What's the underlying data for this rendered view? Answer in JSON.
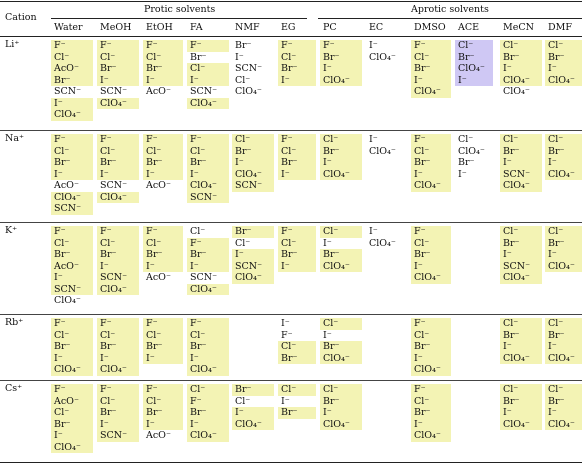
{
  "header": {
    "cation": "Cation",
    "protic": "Protic solvents",
    "aprotic": "Aprotic solvents",
    "solvents": [
      "Water",
      "MeOH",
      "EtOH",
      "FA",
      "NMF",
      "EG",
      "PC",
      "EC",
      "DMSO",
      "ACE",
      "MeCN",
      "DMF"
    ]
  },
  "colors": {
    "highlight": "#f3f3b4",
    "purple": "#cfc8f4"
  },
  "rows": [
    {
      "cation": "Li⁺",
      "cells": [
        [
          [
            "F⁻",
            1
          ],
          [
            "Cl⁻",
            1
          ],
          [
            "AcO⁻",
            1
          ],
          [
            "Br⁻",
            1
          ],
          [
            "SCN⁻",
            0
          ],
          [
            "I⁻",
            1
          ],
          [
            "ClO₄⁻",
            1
          ]
        ],
        [
          [
            "F⁻",
            1
          ],
          [
            "Cl⁻",
            1
          ],
          [
            "Br⁻",
            1
          ],
          [
            "I⁻",
            1
          ],
          [
            "SCN⁻",
            0
          ],
          [
            "ClO₄⁻",
            1
          ]
        ],
        [
          [
            "F⁻",
            1
          ],
          [
            "Cl⁻",
            1
          ],
          [
            "Br⁻",
            1
          ],
          [
            "I⁻",
            1
          ],
          [
            "AcO⁻",
            0
          ]
        ],
        [
          [
            "F⁻",
            1
          ],
          [
            "Br⁻",
            0
          ],
          [
            "Cl⁻",
            1
          ],
          [
            "I⁻",
            1
          ],
          [
            "SCN⁻",
            0
          ],
          [
            "ClO₄⁻",
            1
          ]
        ],
        [
          [
            "Br⁻",
            0
          ],
          [
            "I⁻",
            0
          ],
          [
            "SCN⁻",
            0
          ],
          [
            "Cl⁻",
            0
          ],
          [
            "ClO₄⁻",
            0
          ]
        ],
        [
          [
            "F⁻",
            1
          ],
          [
            "Cl⁻",
            1
          ],
          [
            "Br⁻",
            1
          ],
          [
            "I⁻",
            1
          ]
        ],
        [
          [
            "F⁻",
            1
          ],
          [
            "Br⁻",
            1
          ],
          [
            "I⁻",
            1
          ],
          [
            "ClO₄⁻",
            1
          ]
        ],
        [
          [
            "I⁻",
            0
          ],
          [
            "ClO₄⁻",
            0
          ]
        ],
        [
          [
            "F⁻",
            1
          ],
          [
            "Cl⁻",
            1
          ],
          [
            "Br⁻",
            1
          ],
          [
            "I⁻",
            1
          ],
          [
            "ClO₄⁻",
            1
          ]
        ],
        [
          [
            "Cl⁻",
            2
          ],
          [
            "Br⁻",
            2
          ],
          [
            "ClO₄⁻",
            2
          ],
          [
            "I⁻",
            2
          ]
        ],
        [
          [
            "Cl⁻",
            1
          ],
          [
            "Br⁻",
            1
          ],
          [
            "I⁻",
            1
          ],
          [
            "ClO₄⁻",
            1
          ],
          [
            "ClO₄⁻",
            0
          ]
        ],
        [
          [
            "Cl⁻",
            1
          ],
          [
            "Br⁻",
            1
          ],
          [
            "I⁻",
            1
          ],
          [
            "ClO₄⁻",
            1
          ]
        ]
      ]
    },
    {
      "cation": "Na⁺",
      "cells": [
        [
          [
            "F⁻",
            1
          ],
          [
            "Cl⁻",
            1
          ],
          [
            "Br⁻",
            1
          ],
          [
            "I⁻",
            1
          ],
          [
            "AcO⁻",
            0
          ],
          [
            "ClO₄⁻",
            1
          ],
          [
            "SCN⁻",
            1
          ]
        ],
        [
          [
            "F⁻",
            1
          ],
          [
            "Cl⁻",
            1
          ],
          [
            "Br⁻",
            1
          ],
          [
            "I⁻",
            1
          ],
          [
            "SCN⁻",
            0
          ],
          [
            "ClO₄⁻",
            1
          ]
        ],
        [
          [
            "F⁻",
            1
          ],
          [
            "Cl⁻",
            1
          ],
          [
            "Br⁻",
            1
          ],
          [
            "I⁻",
            1
          ],
          [
            "AcO⁻",
            0
          ]
        ],
        [
          [
            "F⁻",
            1
          ],
          [
            "Cl⁻",
            1
          ],
          [
            "Br⁻",
            1
          ],
          [
            "I⁻",
            1
          ],
          [
            "ClO₄⁻",
            1
          ],
          [
            "SCN⁻",
            1
          ]
        ],
        [
          [
            "Cl⁻",
            1
          ],
          [
            "Br⁻",
            1
          ],
          [
            "I⁻",
            1
          ],
          [
            "ClO₄⁻",
            1
          ],
          [
            "SCN⁻",
            1
          ]
        ],
        [
          [
            "F⁻",
            1
          ],
          [
            "Cl⁻",
            1
          ],
          [
            "Br⁻",
            1
          ],
          [
            "I⁻",
            1
          ]
        ],
        [
          [
            "Cl⁻",
            1
          ],
          [
            "Br⁻",
            1
          ],
          [
            "I⁻",
            1
          ],
          [
            "ClO₄⁻",
            1
          ]
        ],
        [
          [
            "I⁻",
            0
          ],
          [
            "ClO₄⁻",
            0
          ]
        ],
        [
          [
            "F⁻",
            1
          ],
          [
            "Cl⁻",
            1
          ],
          [
            "Br⁻",
            1
          ],
          [
            "I⁻",
            1
          ],
          [
            "ClO₄⁻",
            1
          ]
        ],
        [
          [
            "Cl⁻",
            0
          ],
          [
            "ClO₄⁻",
            0
          ],
          [
            "Br⁻",
            0
          ],
          [
            "I⁻",
            0
          ]
        ],
        [
          [
            "Cl⁻",
            1
          ],
          [
            "Br⁻",
            1
          ],
          [
            "I⁻",
            1
          ],
          [
            "SCN⁻",
            1
          ],
          [
            "ClO₄⁻",
            1
          ]
        ],
        [
          [
            "Cl⁻",
            1
          ],
          [
            "Br⁻",
            1
          ],
          [
            "I⁻",
            1
          ],
          [
            "ClO₄⁻",
            1
          ]
        ]
      ]
    },
    {
      "cation": "K⁺",
      "cells": [
        [
          [
            "F⁻",
            1
          ],
          [
            "Cl⁻",
            1
          ],
          [
            "Br⁻",
            1
          ],
          [
            "AcO⁻",
            1
          ],
          [
            "I⁻",
            1
          ],
          [
            "SCN⁻",
            1
          ],
          [
            "ClO₄⁻",
            0
          ]
        ],
        [
          [
            "F⁻",
            1
          ],
          [
            "Cl⁻",
            1
          ],
          [
            "Br⁻",
            1
          ],
          [
            "I⁻",
            1
          ],
          [
            "SCN⁻",
            1
          ],
          [
            "ClO₄⁻",
            1
          ]
        ],
        [
          [
            "F⁻",
            1
          ],
          [
            "Cl⁻",
            1
          ],
          [
            "Br⁻",
            1
          ],
          [
            "I⁻",
            1
          ],
          [
            "AcO⁻",
            0
          ]
        ],
        [
          [
            "Cl⁻",
            0
          ],
          [
            "F⁻",
            1
          ],
          [
            "Br⁻",
            1
          ],
          [
            "I⁻",
            1
          ],
          [
            "SCN⁻",
            0
          ],
          [
            "ClO₄⁻",
            1
          ]
        ],
        [
          [
            "Br⁻",
            1
          ],
          [
            "Cl⁻",
            0
          ],
          [
            "I⁻",
            1
          ],
          [
            "SCN⁻",
            1
          ],
          [
            "ClO₄⁻",
            1
          ]
        ],
        [
          [
            "F⁻",
            1
          ],
          [
            "Cl⁻",
            1
          ],
          [
            "Br⁻",
            1
          ],
          [
            "I⁻",
            1
          ]
        ],
        [
          [
            "Cl⁻",
            1
          ],
          [
            "I⁻",
            0
          ],
          [
            "Br⁻",
            1
          ],
          [
            "ClO₄⁻",
            1
          ]
        ],
        [
          [
            "I⁻",
            0
          ],
          [
            "ClO₄⁻",
            0
          ]
        ],
        [
          [
            "F⁻",
            1
          ],
          [
            "Cl⁻",
            1
          ],
          [
            "Br⁻",
            1
          ],
          [
            "I⁻",
            1
          ],
          [
            "ClO₄⁻",
            1
          ]
        ],
        [],
        [
          [
            "Cl⁻",
            1
          ],
          [
            "Br⁻",
            1
          ],
          [
            "I⁻",
            1
          ],
          [
            "SCN⁻",
            1
          ],
          [
            "ClO₄⁻",
            1
          ]
        ],
        [
          [
            "Cl⁻",
            1
          ],
          [
            "Br⁻",
            1
          ],
          [
            "I⁻",
            1
          ],
          [
            "ClO₄⁻",
            1
          ]
        ]
      ]
    },
    {
      "cation": "Rb⁺",
      "cells": [
        [
          [
            "F⁻",
            1
          ],
          [
            "Cl⁻",
            1
          ],
          [
            "Br⁻",
            1
          ],
          [
            "I⁻",
            1
          ],
          [
            "ClO₄⁻",
            1
          ]
        ],
        [
          [
            "F⁻",
            1
          ],
          [
            "Cl⁻",
            1
          ],
          [
            "Br⁻",
            1
          ],
          [
            "I⁻",
            1
          ],
          [
            "ClO₄⁻",
            1
          ]
        ],
        [
          [
            "F⁻",
            1
          ],
          [
            "Cl⁻",
            1
          ],
          [
            "Br⁻",
            1
          ],
          [
            "I⁻",
            1
          ]
        ],
        [
          [
            "F⁻",
            1
          ],
          [
            "Cl⁻",
            1
          ],
          [
            "Br⁻",
            1
          ],
          [
            "I⁻",
            1
          ],
          [
            "ClO₄⁻",
            1
          ]
        ],
        [],
        [
          [
            "I⁻",
            0
          ],
          [
            "F⁻",
            0
          ],
          [
            "Cl⁻",
            1
          ],
          [
            "Br⁻",
            1
          ]
        ],
        [
          [
            "Cl⁻",
            1
          ],
          [
            "I⁻",
            0
          ],
          [
            "Br⁻",
            1
          ],
          [
            "ClO₄⁻",
            1
          ]
        ],
        [],
        [
          [
            "F⁻",
            1
          ],
          [
            "Cl⁻",
            1
          ],
          [
            "Br⁻",
            1
          ],
          [
            "I⁻",
            1
          ],
          [
            "ClO₄⁻",
            1
          ]
        ],
        [],
        [
          [
            "Cl⁻",
            1
          ],
          [
            "Br⁻",
            1
          ],
          [
            "I⁻",
            1
          ],
          [
            "ClO₄⁻",
            1
          ]
        ],
        [
          [
            "Cl⁻",
            1
          ],
          [
            "Br⁻",
            1
          ],
          [
            "I⁻",
            1
          ],
          [
            "ClO₄⁻",
            1
          ]
        ]
      ]
    },
    {
      "cation": "Cs⁺",
      "cells": [
        [
          [
            "F⁻",
            1
          ],
          [
            "AcO⁻",
            1
          ],
          [
            "Cl⁻",
            1
          ],
          [
            "Br⁻",
            1
          ],
          [
            "I⁻",
            1
          ],
          [
            "ClO₄⁻",
            1
          ]
        ],
        [
          [
            "F⁻",
            1
          ],
          [
            "Cl⁻",
            1
          ],
          [
            "Br⁻",
            1
          ],
          [
            "I⁻",
            1
          ],
          [
            "SCN⁻",
            1
          ]
        ],
        [
          [
            "F⁻",
            1
          ],
          [
            "Cl⁻",
            1
          ],
          [
            "Br⁻",
            1
          ],
          [
            "I⁻",
            1
          ],
          [
            "AcO⁻",
            0
          ]
        ],
        [
          [
            "Cl⁻",
            1
          ],
          [
            "F⁻",
            1
          ],
          [
            "Br⁻",
            1
          ],
          [
            "I⁻",
            1
          ],
          [
            "ClO₄⁻",
            1
          ]
        ],
        [
          [
            "Br⁻",
            1
          ],
          [
            "Cl⁻",
            0
          ],
          [
            "I⁻",
            1
          ],
          [
            "ClO₄⁻",
            1
          ]
        ],
        [
          [
            "Cl⁻",
            1
          ],
          [
            "I⁻",
            0
          ],
          [
            "Br⁻",
            1
          ]
        ],
        [
          [
            "Cl⁻",
            1
          ],
          [
            "Br⁻",
            1
          ],
          [
            "I⁻",
            1
          ],
          [
            "ClO₄⁻",
            1
          ]
        ],
        [],
        [
          [
            "F⁻",
            1
          ],
          [
            "Cl⁻",
            1
          ],
          [
            "Br⁻",
            1
          ],
          [
            "I⁻",
            1
          ],
          [
            "ClO₄⁻",
            1
          ]
        ],
        [],
        [
          [
            "Cl⁻",
            1
          ],
          [
            "Br⁻",
            1
          ],
          [
            "I⁻",
            1
          ],
          [
            "ClO₄⁻",
            1
          ]
        ],
        [
          [
            "Cl⁻",
            1
          ],
          [
            "Br⁻",
            1
          ],
          [
            "I⁻",
            1
          ],
          [
            "ClO₄⁻",
            1
          ]
        ]
      ]
    }
  ]
}
